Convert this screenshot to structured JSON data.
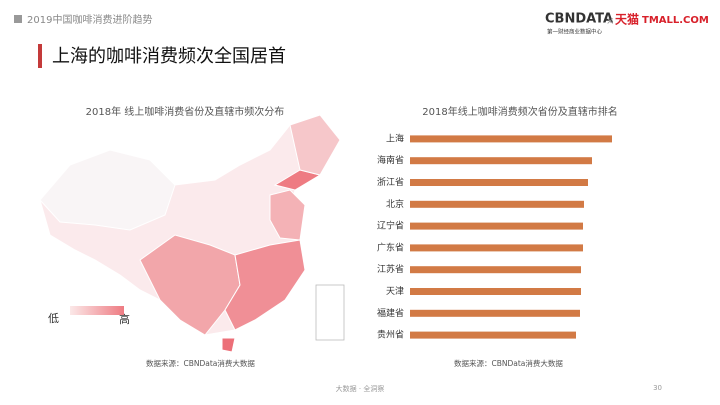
{
  "header": {
    "deck": "2019中国咖啡消费进阶趋势",
    "logo": "CBNDATA",
    "logo_sub": "第一财经商业数据中心",
    "times": "×",
    "partner": "天猫",
    "partner_en": "TMALL.COM"
  },
  "slide_title": "上海的咖啡消费频次全国居首",
  "map": {
    "title": "2018年 线上咖啡消费省份及直辖市频次分布",
    "legend_low": "低",
    "legend_high": "高",
    "source": "数据来源：CBNData消费大数据"
  },
  "chart_data": {
    "type": "bar",
    "orientation": "horizontal",
    "title": "2018年线上咖啡消费频次省份及直辖市排名",
    "categories": [
      "上海",
      "海南省",
      "浙江省",
      "北京",
      "辽宁省",
      "广东省",
      "江苏省",
      "天津",
      "福建省",
      "贵州省"
    ],
    "values": [
      202,
      182,
      178,
      174,
      173,
      173,
      171,
      171,
      170,
      166
    ],
    "color": "#d27a45",
    "xlim": [
      0,
      210
    ],
    "source": "数据来源：CBNData消费大数据"
  },
  "footer": {
    "tagline": "大数据 · 全洞察",
    "page": "30"
  }
}
